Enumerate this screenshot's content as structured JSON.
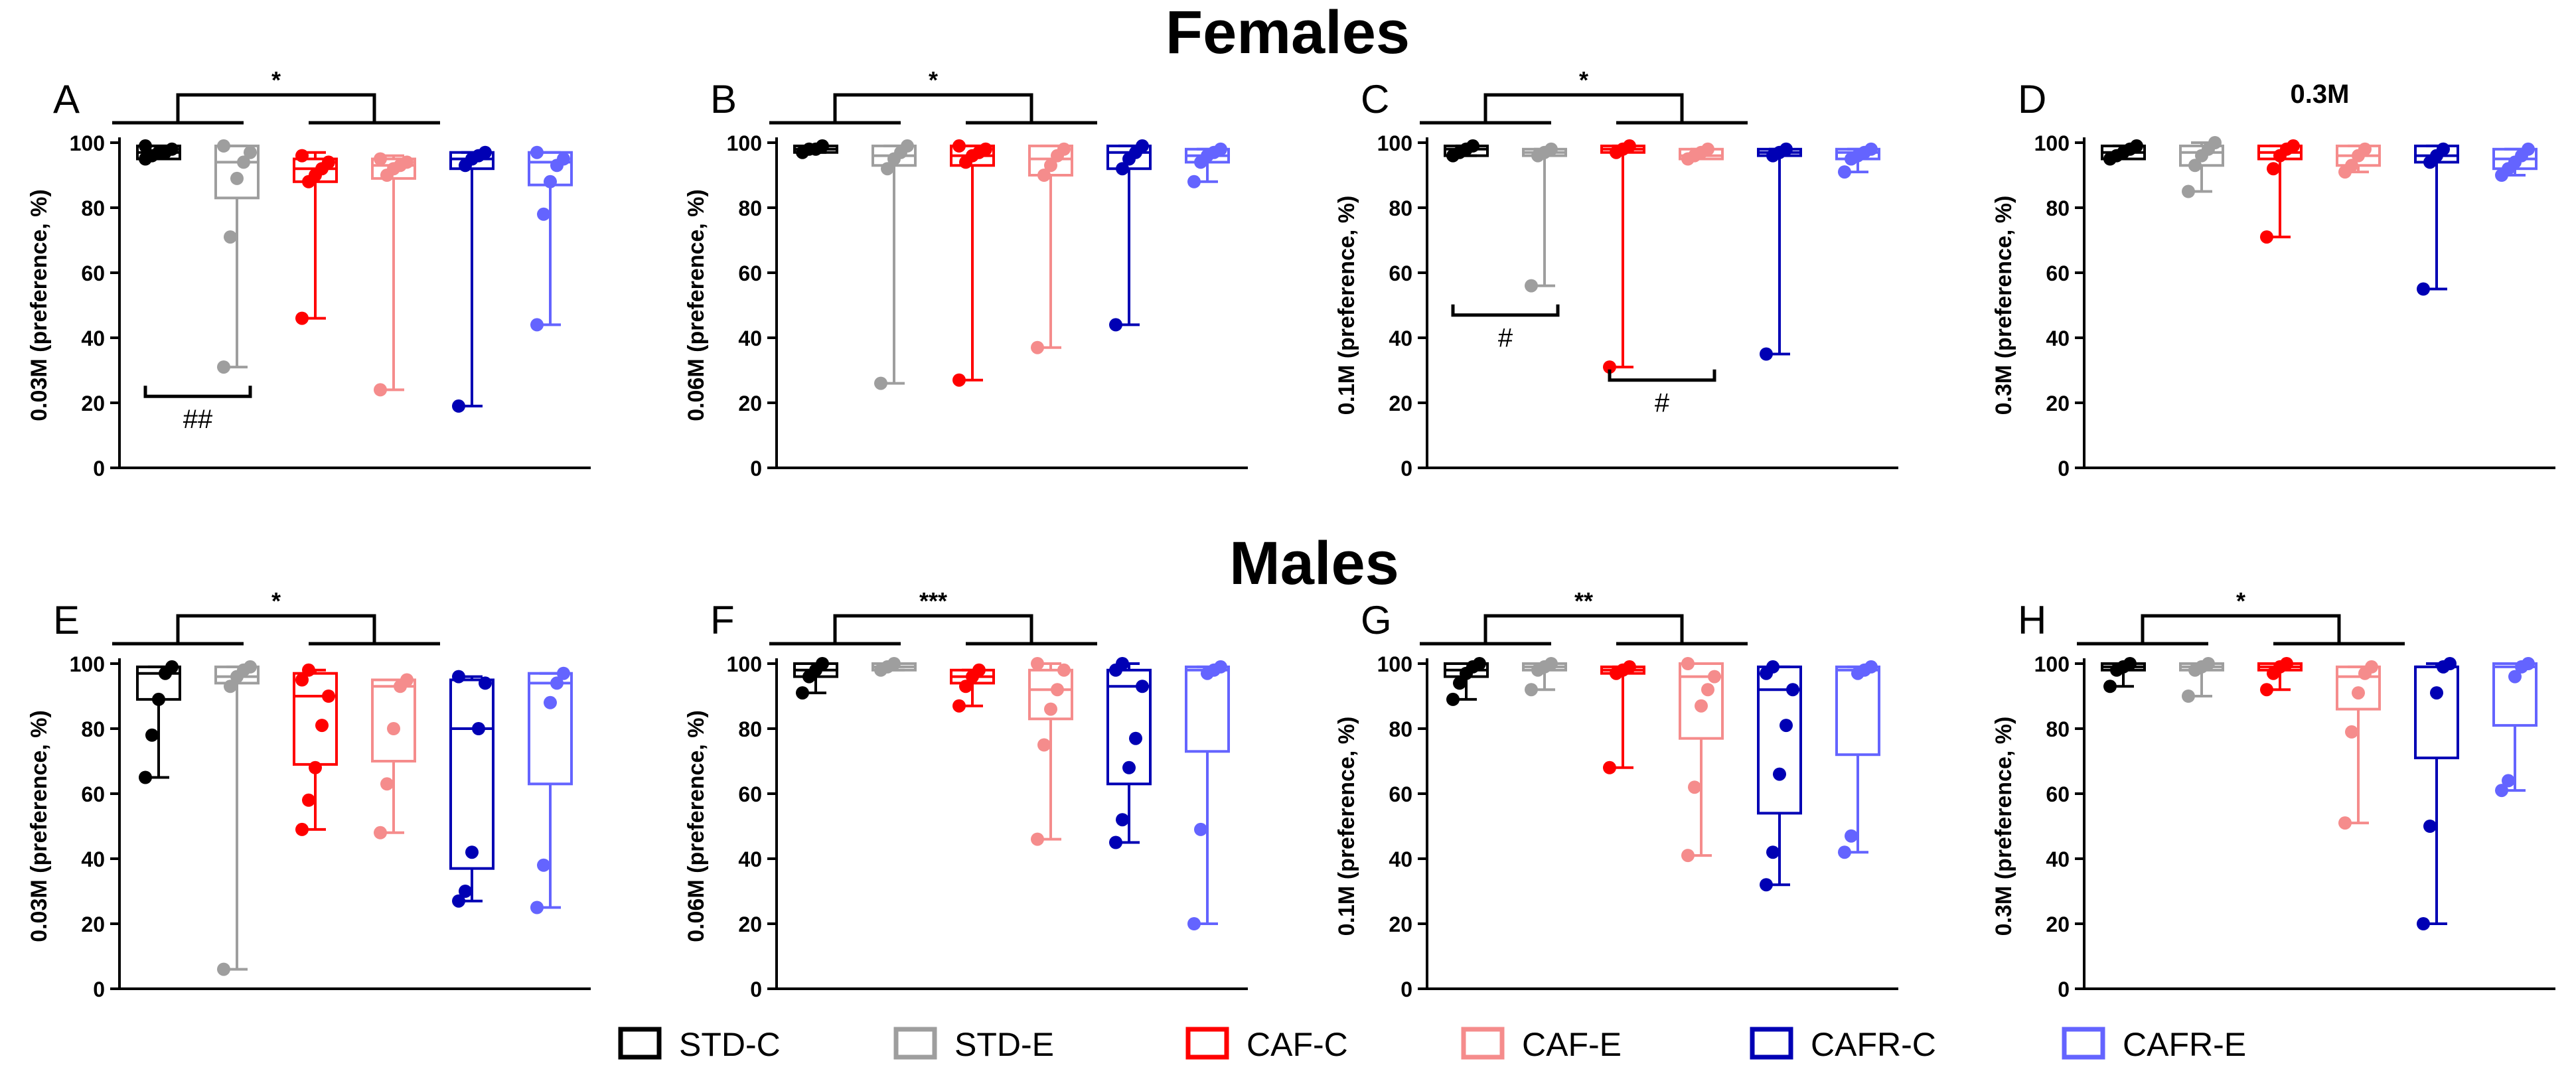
{
  "titles": {
    "top": "Females",
    "bottom": "Males"
  },
  "groups": [
    {
      "name": "STD-C",
      "color": "#000000"
    },
    {
      "name": "STD-E",
      "color": "#9e9e9e"
    },
    {
      "name": "CAF-C",
      "color": "#ff0000"
    },
    {
      "name": "CAF-E",
      "color": "#f58c8c"
    },
    {
      "name": "CAFR-C",
      "color": "#0000b4"
    },
    {
      "name": "CAFR-E",
      "color": "#6464ff"
    }
  ],
  "chart_data": [
    {
      "type": "box",
      "panel": "A",
      "row": "Females",
      "title": "",
      "ylabel": "0.03M (preference, %)",
      "ylim": [
        0,
        100
      ],
      "yticks": [
        0,
        20,
        40,
        60,
        80,
        100
      ],
      "boxes": [
        {
          "group": "STD-C",
          "min": 95,
          "q1": 95,
          "median": 97,
          "q3": 99,
          "max": 99,
          "points": [
            95,
            96,
            97,
            97,
            98,
            99
          ]
        },
        {
          "group": "STD-E",
          "min": 31,
          "q1": 83,
          "median": 94,
          "q3": 99,
          "max": 99,
          "points": [
            31,
            71,
            89,
            94,
            97,
            99
          ]
        },
        {
          "group": "CAF-C",
          "min": 46,
          "q1": 88,
          "median": 92,
          "q3": 95,
          "max": 97,
          "points": [
            46,
            88,
            90,
            92,
            94,
            96
          ]
        },
        {
          "group": "CAF-E",
          "min": 24,
          "q1": 89,
          "median": 93,
          "q3": 95,
          "max": 96,
          "points": [
            24,
            90,
            92,
            93,
            94,
            95
          ]
        },
        {
          "group": "CAFR-C",
          "min": 19,
          "q1": 92,
          "median": 95,
          "q3": 97,
          "max": 97,
          "points": [
            19,
            93,
            95,
            96,
            97
          ]
        },
        {
          "group": "CAFR-E",
          "min": 44,
          "q1": 87,
          "median": 94,
          "q3": 97,
          "max": 97,
          "points": [
            44,
            78,
            88,
            93,
            95,
            97
          ]
        }
      ],
      "annotations": [
        {
          "type": "star",
          "label": "*",
          "from": [
            0,
            1
          ],
          "to": [
            2,
            3
          ]
        },
        {
          "type": "hash",
          "label": "##",
          "from": 0,
          "to": 1,
          "y": 22
        }
      ]
    },
    {
      "type": "box",
      "panel": "B",
      "row": "Females",
      "title": "",
      "ylabel": "0.06M (preference, %)",
      "ylim": [
        0,
        100
      ],
      "yticks": [
        0,
        20,
        40,
        60,
        80,
        100
      ],
      "boxes": [
        {
          "group": "STD-C",
          "min": 97,
          "q1": 97,
          "median": 98,
          "q3": 99,
          "max": 99,
          "points": [
            97,
            98,
            98,
            99
          ]
        },
        {
          "group": "STD-E",
          "min": 26,
          "q1": 93,
          "median": 96,
          "q3": 99,
          "max": 99,
          "points": [
            26,
            92,
            95,
            97,
            99
          ]
        },
        {
          "group": "CAF-C",
          "min": 27,
          "q1": 93,
          "median": 96,
          "q3": 99,
          "max": 99,
          "points": [
            27,
            94,
            96,
            97,
            98,
            99
          ]
        },
        {
          "group": "CAF-E",
          "min": 37,
          "q1": 90,
          "median": 95,
          "q3": 99,
          "max": 99,
          "points": [
            37,
            90,
            93,
            96,
            98
          ]
        },
        {
          "group": "CAFR-C",
          "min": 44,
          "q1": 92,
          "median": 97,
          "q3": 99,
          "max": 99,
          "points": [
            44,
            92,
            95,
            97,
            99
          ]
        },
        {
          "group": "CAFR-E",
          "min": 88,
          "q1": 94,
          "median": 96,
          "q3": 98,
          "max": 98,
          "points": [
            88,
            94,
            96,
            97,
            98
          ]
        }
      ],
      "annotations": [
        {
          "type": "star",
          "label": "*",
          "from": [
            0,
            1
          ],
          "to": [
            2,
            3
          ]
        }
      ]
    },
    {
      "type": "box",
      "panel": "C",
      "row": "Females",
      "title": "",
      "ylabel": "0.1M (preference, %)",
      "ylim": [
        0,
        100
      ],
      "yticks": [
        0,
        20,
        40,
        60,
        80,
        100
      ],
      "boxes": [
        {
          "group": "STD-C",
          "min": 96,
          "q1": 96,
          "median": 98,
          "q3": 99,
          "max": 99,
          "points": [
            96,
            97,
            98,
            99
          ]
        },
        {
          "group": "STD-E",
          "min": 56,
          "q1": 96,
          "median": 97,
          "q3": 98,
          "max": 98,
          "points": [
            56,
            96,
            97,
            98
          ]
        },
        {
          "group": "CAF-C",
          "min": 31,
          "q1": 97,
          "median": 98,
          "q3": 99,
          "max": 99,
          "points": [
            31,
            97,
            98,
            99
          ]
        },
        {
          "group": "CAF-E",
          "min": 95,
          "q1": 95,
          "median": 96,
          "q3": 98,
          "max": 98,
          "points": [
            95,
            96,
            97,
            98
          ]
        },
        {
          "group": "CAFR-C",
          "min": 35,
          "q1": 96,
          "median": 97,
          "q3": 98,
          "max": 98,
          "points": [
            35,
            96,
            97,
            98
          ]
        },
        {
          "group": "CAFR-E",
          "min": 91,
          "q1": 95,
          "median": 97,
          "q3": 98,
          "max": 98,
          "points": [
            91,
            95,
            96,
            97,
            98
          ]
        }
      ],
      "annotations": [
        {
          "type": "star",
          "label": "*",
          "from": [
            0,
            1
          ],
          "to": [
            2,
            3
          ]
        },
        {
          "type": "hash",
          "label": "#",
          "from": 0,
          "to": 1,
          "y": 47
        },
        {
          "type": "hash",
          "label": "#",
          "from": 2,
          "to": 3,
          "y": 27
        }
      ]
    },
    {
      "type": "box",
      "panel": "D",
      "row": "Females",
      "title": "0.3M",
      "ylabel": "0.3M (preference, %)",
      "ylim": [
        0,
        100
      ],
      "yticks": [
        0,
        20,
        40,
        60,
        80,
        100
      ],
      "boxes": [
        {
          "group": "STD-C",
          "min": 95,
          "q1": 95,
          "median": 97,
          "q3": 99,
          "max": 99,
          "points": [
            95,
            96,
            97,
            98,
            99
          ]
        },
        {
          "group": "STD-E",
          "min": 85,
          "q1": 93,
          "median": 97,
          "q3": 99,
          "max": 100,
          "points": [
            85,
            93,
            96,
            98,
            100
          ]
        },
        {
          "group": "CAF-C",
          "min": 71,
          "q1": 95,
          "median": 97,
          "q3": 99,
          "max": 99,
          "points": [
            71,
            92,
            96,
            98,
            99
          ]
        },
        {
          "group": "CAF-E",
          "min": 91,
          "q1": 93,
          "median": 96,
          "q3": 99,
          "max": 99,
          "points": [
            91,
            93,
            96,
            98
          ]
        },
        {
          "group": "CAFR-C",
          "min": 55,
          "q1": 94,
          "median": 96,
          "q3": 99,
          "max": 99,
          "points": [
            55,
            94,
            96,
            98
          ]
        },
        {
          "group": "CAFR-E",
          "min": 90,
          "q1": 92,
          "median": 95,
          "q3": 98,
          "max": 98,
          "points": [
            90,
            92,
            94,
            96,
            98
          ]
        }
      ],
      "annotations": []
    },
    {
      "type": "box",
      "panel": "E",
      "row": "Males",
      "title": "",
      "ylabel": "0.03M (preference, %)",
      "ylim": [
        0,
        100
      ],
      "yticks": [
        0,
        20,
        40,
        60,
        80,
        100
      ],
      "boxes": [
        {
          "group": "STD-C",
          "min": 65,
          "q1": 89,
          "median": 97,
          "q3": 99,
          "max": 99,
          "points": [
            65,
            78,
            89,
            97,
            99
          ]
        },
        {
          "group": "STD-E",
          "min": 6,
          "q1": 94,
          "median": 96,
          "q3": 99,
          "max": 99,
          "points": [
            6,
            93,
            96,
            98,
            99
          ]
        },
        {
          "group": "CAF-C",
          "min": 49,
          "q1": 69,
          "median": 90,
          "q3": 97,
          "max": 98,
          "points": [
            49,
            58,
            68,
            81,
            90,
            95,
            98
          ]
        },
        {
          "group": "CAF-E",
          "min": 48,
          "q1": 70,
          "median": 93,
          "q3": 95,
          "max": 95,
          "points": [
            48,
            63,
            80,
            93,
            95
          ]
        },
        {
          "group": "CAFR-C",
          "min": 27,
          "q1": 37,
          "median": 80,
          "q3": 95,
          "max": 96,
          "points": [
            27,
            30,
            42,
            80,
            94,
            96
          ]
        },
        {
          "group": "CAFR-E",
          "min": 25,
          "q1": 63,
          "median": 94,
          "q3": 97,
          "max": 97,
          "points": [
            25,
            38,
            88,
            94,
            97
          ]
        }
      ],
      "annotations": [
        {
          "type": "star",
          "label": "*",
          "from": [
            0,
            1
          ],
          "to": [
            2,
            3
          ]
        }
      ]
    },
    {
      "type": "box",
      "panel": "F",
      "row": "Males",
      "title": "",
      "ylabel": "0.06M (preference, %)",
      "ylim": [
        0,
        100
      ],
      "yticks": [
        0,
        20,
        40,
        60,
        80,
        100
      ],
      "boxes": [
        {
          "group": "STD-C",
          "min": 91,
          "q1": 96,
          "median": 98,
          "q3": 100,
          "max": 100,
          "points": [
            91,
            96,
            98,
            100
          ]
        },
        {
          "group": "STD-E",
          "min": 98,
          "q1": 98,
          "median": 99,
          "q3": 100,
          "max": 100,
          "points": [
            98,
            99,
            100
          ]
        },
        {
          "group": "CAF-C",
          "min": 87,
          "q1": 94,
          "median": 96,
          "q3": 98,
          "max": 98,
          "points": [
            87,
            93,
            96,
            98
          ]
        },
        {
          "group": "CAF-E",
          "min": 46,
          "q1": 83,
          "median": 92,
          "q3": 98,
          "max": 100,
          "points": [
            46,
            75,
            86,
            92,
            98,
            100
          ]
        },
        {
          "group": "CAFR-C",
          "min": 45,
          "q1": 63,
          "median": 93,
          "q3": 98,
          "max": 100,
          "points": [
            45,
            52,
            68,
            77,
            93,
            98,
            100
          ]
        },
        {
          "group": "CAFR-E",
          "min": 20,
          "q1": 73,
          "median": 98,
          "q3": 99,
          "max": 99,
          "points": [
            20,
            49,
            97,
            98,
            99
          ]
        }
      ],
      "annotations": [
        {
          "type": "star",
          "label": "***",
          "from": [
            0,
            1
          ],
          "to": [
            2,
            3
          ]
        }
      ]
    },
    {
      "type": "box",
      "panel": "G",
      "row": "Males",
      "title": "",
      "ylabel": "0.1M (preference, %)",
      "ylim": [
        0,
        100
      ],
      "yticks": [
        0,
        20,
        40,
        60,
        80,
        100
      ],
      "boxes": [
        {
          "group": "STD-C",
          "min": 89,
          "q1": 96,
          "median": 98,
          "q3": 100,
          "max": 100,
          "points": [
            89,
            94,
            97,
            99,
            100
          ]
        },
        {
          "group": "STD-E",
          "min": 92,
          "q1": 98,
          "median": 99,
          "q3": 100,
          "max": 100,
          "points": [
            92,
            98,
            99,
            100
          ]
        },
        {
          "group": "CAF-C",
          "min": 68,
          "q1": 97,
          "median": 98,
          "q3": 99,
          "max": 99,
          "points": [
            68,
            97,
            98,
            99
          ]
        },
        {
          "group": "CAF-E",
          "min": 41,
          "q1": 77,
          "median": 96,
          "q3": 100,
          "max": 100,
          "points": [
            41,
            62,
            87,
            92,
            96,
            100
          ]
        },
        {
          "group": "CAFR-C",
          "min": 32,
          "q1": 54,
          "median": 92,
          "q3": 99,
          "max": 99,
          "points": [
            32,
            42,
            66,
            81,
            92,
            97,
            99
          ]
        },
        {
          "group": "CAFR-E",
          "min": 42,
          "q1": 72,
          "median": 98,
          "q3": 99,
          "max": 99,
          "points": [
            42,
            47,
            97,
            98,
            99
          ]
        }
      ],
      "annotations": [
        {
          "type": "star",
          "label": "**",
          "from": [
            0,
            1
          ],
          "to": [
            2,
            3
          ]
        }
      ]
    },
    {
      "type": "box",
      "panel": "H",
      "row": "Males",
      "title": "",
      "ylabel": "0.3M (preference, %)",
      "ylim": [
        0,
        100
      ],
      "yticks": [
        0,
        20,
        40,
        60,
        80,
        100
      ],
      "boxes": [
        {
          "group": "STD-C",
          "min": 93,
          "q1": 98,
          "median": 99,
          "q3": 100,
          "max": 100,
          "points": [
            93,
            98,
            99,
            100
          ]
        },
        {
          "group": "STD-E",
          "min": 90,
          "q1": 98,
          "median": 99,
          "q3": 100,
          "max": 100,
          "points": [
            90,
            98,
            99,
            100
          ]
        },
        {
          "group": "CAF-C",
          "min": 92,
          "q1": 98,
          "median": 99,
          "q3": 100,
          "max": 100,
          "points": [
            92,
            97,
            99,
            100
          ]
        },
        {
          "group": "CAF-E",
          "min": 51,
          "q1": 86,
          "median": 96,
          "q3": 99,
          "max": 99,
          "points": [
            51,
            79,
            91,
            97,
            99
          ]
        },
        {
          "group": "CAFR-C",
          "min": 20,
          "q1": 71,
          "median": 99,
          "q3": 99,
          "max": 100,
          "points": [
            20,
            50,
            91,
            99,
            100
          ]
        },
        {
          "group": "CAFR-E",
          "min": 61,
          "q1": 81,
          "median": 99,
          "q3": 100,
          "max": 100,
          "points": [
            61,
            64,
            96,
            99,
            100
          ]
        }
      ],
      "annotations": [
        {
          "type": "star",
          "label": "*",
          "from": [
            0,
            1
          ],
          "to": [
            2,
            3
          ]
        }
      ]
    }
  ]
}
